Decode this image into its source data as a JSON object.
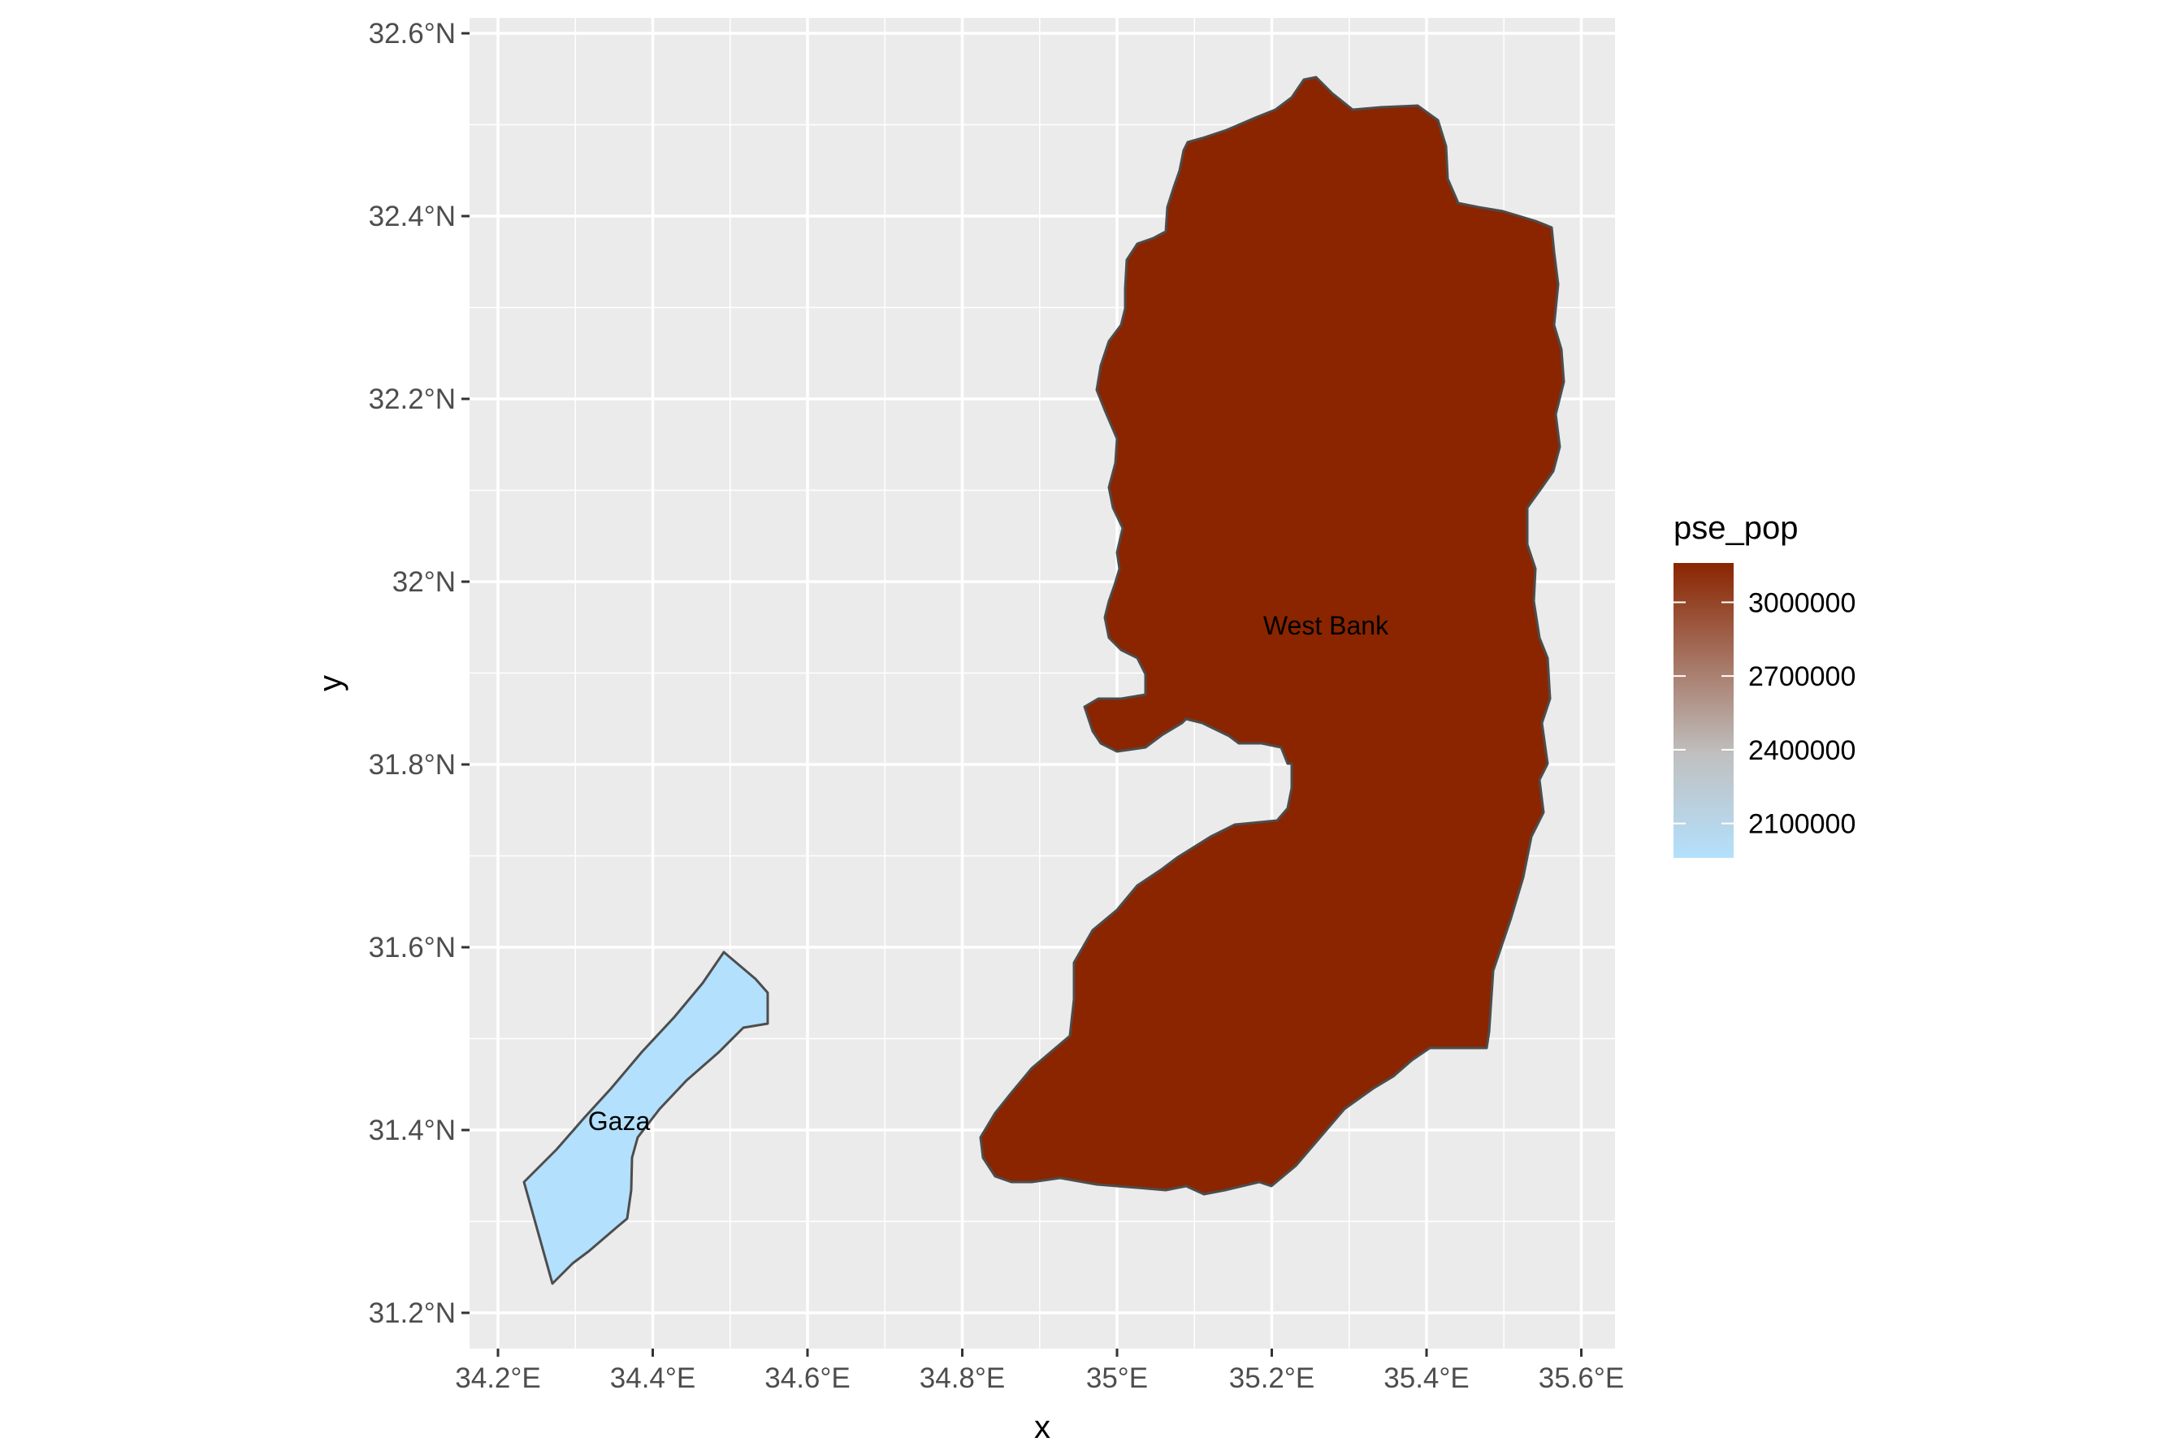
{
  "chart_data": {
    "type": "choropleth",
    "xlabel": "x",
    "ylabel": "y",
    "x_ticks": [
      "34.2°E",
      "34.4°E",
      "34.6°E",
      "34.8°E",
      "35°E",
      "35.2°E",
      "35.4°E",
      "35.6°E"
    ],
    "y_ticks": [
      "31.2°N",
      "31.4°N",
      "31.6°N",
      "31.8°N",
      "32°N",
      "32.2°N",
      "32.4°N",
      "32.6°N"
    ],
    "xlim": [
      34.17,
      35.65
    ],
    "ylim": [
      31.16,
      32.62
    ],
    "regions": [
      {
        "name": "Gaza",
        "value": 2000000,
        "color": "#b3e0fc"
      },
      {
        "name": "West Bank",
        "value": 3150000,
        "color": "#8a2500"
      }
    ],
    "legend": {
      "title": "pse_pop",
      "labels": [
        "3000000",
        "2700000",
        "2400000",
        "2100000"
      ],
      "breaks": [
        3000000,
        2700000,
        2400000,
        2100000
      ],
      "range": [
        1960000,
        3160000
      ],
      "low_color": "#b3e0fc",
      "mid_color": "#c0c0c0",
      "high_color": "#8a2500",
      "placement": "right"
    },
    "grid": true,
    "panel_background": "#ebebeb",
    "grid_color": "#ffffff"
  }
}
